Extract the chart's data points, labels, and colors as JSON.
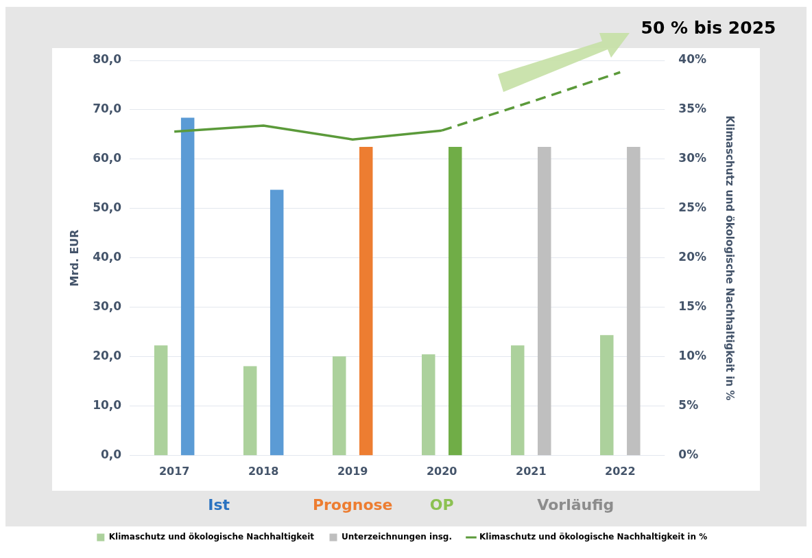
{
  "chart_data": {
    "type": "bar",
    "categories": [
      "2017",
      "2018",
      "2019",
      "2020",
      "2021",
      "2022"
    ],
    "ylabel": "Mrd. EUR",
    "y2label": "Klimaschutz und ökologische Nachhaltigkeit in %",
    "ylim": [
      0,
      80
    ],
    "yticks": [
      {
        "value": 0,
        "label": "0,0"
      },
      {
        "value": 10,
        "label": "10,0"
      },
      {
        "value": 20,
        "label": "20,0"
      },
      {
        "value": 30,
        "label": "30,0"
      },
      {
        "value": 40,
        "label": "40,0"
      },
      {
        "value": 50,
        "label": "50,0"
      },
      {
        "value": 60,
        "label": "60,0"
      },
      {
        "value": 70,
        "label": "70,0"
      },
      {
        "value": 80,
        "label": "80,0"
      }
    ],
    "y2lim": [
      0,
      40
    ],
    "y2ticks": [
      {
        "value": 0,
        "label": "0%"
      },
      {
        "value": 5,
        "label": "5%"
      },
      {
        "value": 10,
        "label": "10%"
      },
      {
        "value": 15,
        "label": "15%"
      },
      {
        "value": 20,
        "label": "20%"
      },
      {
        "value": 25,
        "label": "25%"
      },
      {
        "value": 30,
        "label": "30%"
      },
      {
        "value": 35,
        "label": "35%"
      },
      {
        "value": 40,
        "label": "40%"
      }
    ],
    "series": [
      {
        "name": "Klimaschutz und ökologische Nachhaltigkeit",
        "color": "#acd19c",
        "values": [
          22.3,
          18.1,
          20.1,
          20.5,
          22.3,
          24.4
        ]
      },
      {
        "name": "Unterzeichnungen insg.",
        "color": "#bfbfbf",
        "colors": [
          "#5b9bd5",
          "#5b9bd5",
          "#ed7d31",
          "#70ad47",
          "#bfbfbf",
          "#bfbfbf"
        ],
        "values": [
          68.4,
          53.8,
          62.5,
          62.5,
          62.5,
          62.5
        ]
      },
      {
        "name": "Klimaschutz und ökologische Nachhaltigkeit in %",
        "type": "line",
        "axis": "y2",
        "color": "#5b9a3a",
        "values": [
          32.8,
          33.4,
          32.0,
          32.9,
          null,
          null
        ]
      },
      {
        "type": "line",
        "axis": "y2",
        "color": "#5b9a3a",
        "line_style": "dashed",
        "values": [
          null,
          null,
          null,
          32.9,
          35.8,
          38.8
        ]
      }
    ],
    "annotations": [
      "50 % bis 2025",
      "Ist",
      "Prognose",
      "OP",
      "Vorläufig"
    ],
    "grid": "y",
    "legend": "bottom",
    "marker": "none"
  }
}
